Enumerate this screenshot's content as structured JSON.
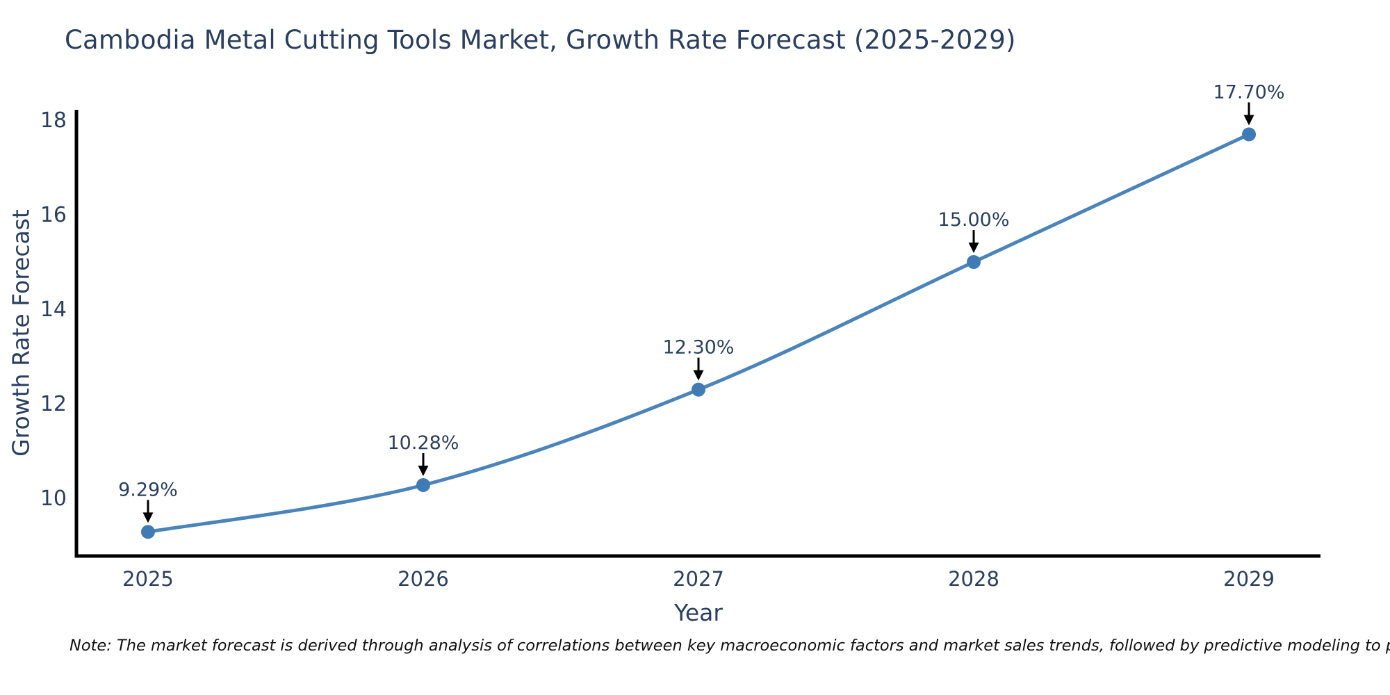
{
  "page": {
    "background": "#ffffff"
  },
  "note": {
    "text": "Note: The market forecast is derived through analysis of correlations between key macroeconomic factors and market sales trends, followed by predictive modeling to project future sales"
  },
  "chart_data": {
    "type": "line",
    "title": "Cambodia Metal Cutting Tools Market, Growth Rate Forecast (2025-2029)",
    "xlabel": "Year",
    "ylabel": "Growth Rate Forecast",
    "x": [
      2025,
      2026,
      2027,
      2028,
      2029
    ],
    "y": [
      9.29,
      10.28,
      12.3,
      15.0,
      17.7
    ],
    "series": [
      {
        "name": "Growth Rate Forecast",
        "values": [
          9.29,
          10.28,
          12.3,
          15.0,
          17.7
        ]
      }
    ],
    "point_labels": [
      "9.29%",
      "10.28%",
      "12.30%",
      "15.00%",
      "17.70%"
    ],
    "x_tick_labels": [
      "2025",
      "2026",
      "2027",
      "2028",
      "2029"
    ],
    "y_ticks": [
      10,
      12,
      14,
      16,
      18
    ],
    "xlim": [
      2024.74,
      2029.26
    ],
    "ylim": [
      8.78,
      18.22
    ],
    "line_shape": "spline",
    "grid": false,
    "legend_position": "none",
    "annotation_arrows": true,
    "colors": {
      "line": "#4a84ba",
      "marker": "#3f7cb6",
      "axis_line": "#000000",
      "tick_text": "#2a3f5f",
      "title_text": "#2a3f5f",
      "annotation_text": "#2a3f5f",
      "arrow": "#000000",
      "note_text": "#111111",
      "background": "#ffffff"
    }
  }
}
